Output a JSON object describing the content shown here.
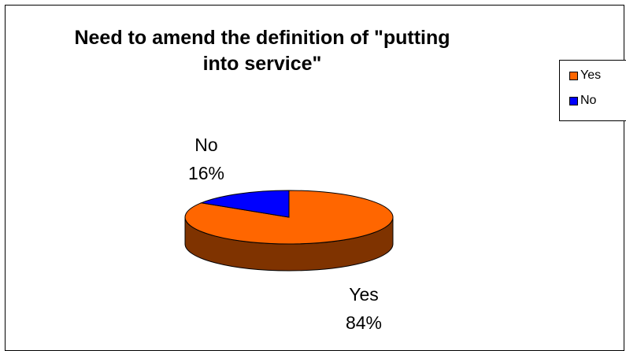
{
  "chart_data": {
    "type": "pie",
    "title": "Need to amend the definition of \"putting into service\"",
    "categories": [
      "Yes",
      "No"
    ],
    "values": [
      84,
      16
    ],
    "percent_labels": [
      "84%",
      "16%"
    ],
    "colors": [
      "#FF6600",
      "#0000FF"
    ],
    "side_colors": [
      "#7F3300",
      "#000080"
    ],
    "legend": {
      "position": "right",
      "entries": [
        "Yes",
        "No"
      ]
    },
    "three_d": true
  }
}
